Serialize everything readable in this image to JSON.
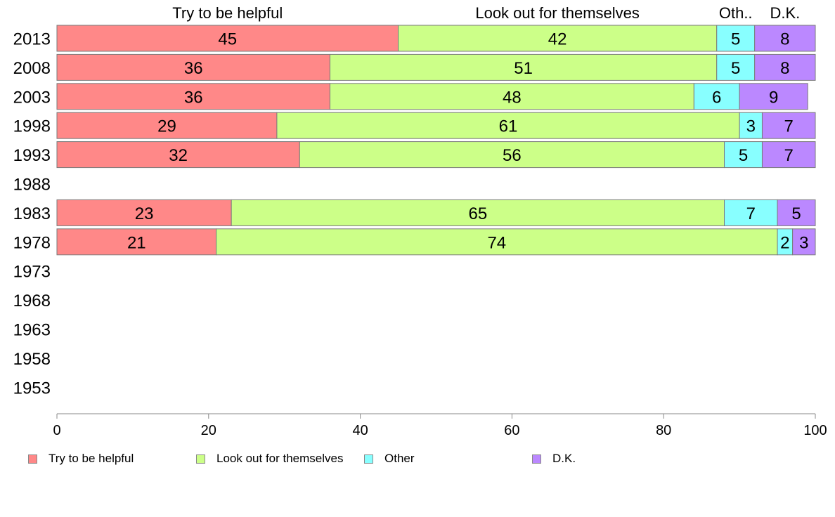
{
  "chart_data": {
    "type": "bar",
    "orientation": "horizontal",
    "stacked": true,
    "categories": [
      "2013",
      "2008",
      "2003",
      "1998",
      "1993",
      "1988",
      "1983",
      "1978",
      "1973",
      "1968",
      "1963",
      "1958",
      "1953"
    ],
    "series": [
      {
        "name": "Try to be helpful",
        "color": "#ff8888",
        "values": [
          45,
          36,
          36,
          29,
          32,
          null,
          23,
          21,
          null,
          null,
          null,
          null,
          null
        ]
      },
      {
        "name": "Look out for themselves",
        "color": "#ccff88",
        "values": [
          42,
          51,
          48,
          61,
          56,
          null,
          65,
          74,
          null,
          null,
          null,
          null,
          null
        ]
      },
      {
        "name": "Other",
        "color": "#88ffff",
        "values": [
          5,
          5,
          6,
          3,
          5,
          null,
          7,
          2,
          null,
          null,
          null,
          null,
          null
        ]
      },
      {
        "name": "D.K.",
        "color": "#bb88ff",
        "values": [
          8,
          8,
          9,
          7,
          7,
          null,
          5,
          3,
          null,
          null,
          null,
          null,
          null
        ]
      }
    ],
    "top_labels": [
      "Try to be helpful",
      "Look out for themselves",
      "Oth..",
      "D.K."
    ],
    "xlim": [
      0,
      100
    ],
    "xticks": [
      "0",
      "20",
      "40",
      "60",
      "80",
      "100"
    ],
    "grid": false,
    "legend_position": "bottom"
  }
}
